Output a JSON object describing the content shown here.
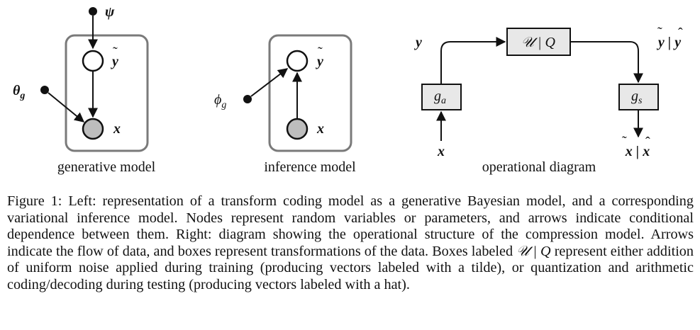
{
  "panels": {
    "generative": {
      "label": "generative model",
      "nodes": {
        "psi": "ψ",
        "ytilde": "y",
        "theta": "θ",
        "theta_sub": "g",
        "x": "x"
      }
    },
    "inference": {
      "label": "inference model",
      "nodes": {
        "ytilde": "y",
        "phi": "ϕ",
        "phi_sub": "g",
        "x": "x"
      }
    },
    "operational": {
      "label": "operational diagram",
      "input_y": "y",
      "input_x": "x",
      "box_uq": "𝒰 | Q",
      "box_ga": "g",
      "box_ga_sub": "a",
      "box_gs": "g",
      "box_gs_sub": "s",
      "out_top": "y | y",
      "out_bottom": "x | x"
    }
  },
  "caption": {
    "figure_label": "Figure 1:",
    "text_before_symbol": " Left: representation of a transform coding model as a generative Bayesian model, and a corresponding variational inference model. Nodes represent random variables or parameters, and arrows indicate conditional dependence between them. Right: diagram showing the operational structure of the compression model. Arrows indicate the flow of data, and boxes represent transformations of the data. Boxes labeled ",
    "symbol": "𝒰 | Q",
    "text_after_symbol": " represent either addition of uniform noise applied during training (producing vectors labeled with a tilde), or quantization and arithmetic coding/decoding during testing (producing vectors labeled with a hat)."
  }
}
